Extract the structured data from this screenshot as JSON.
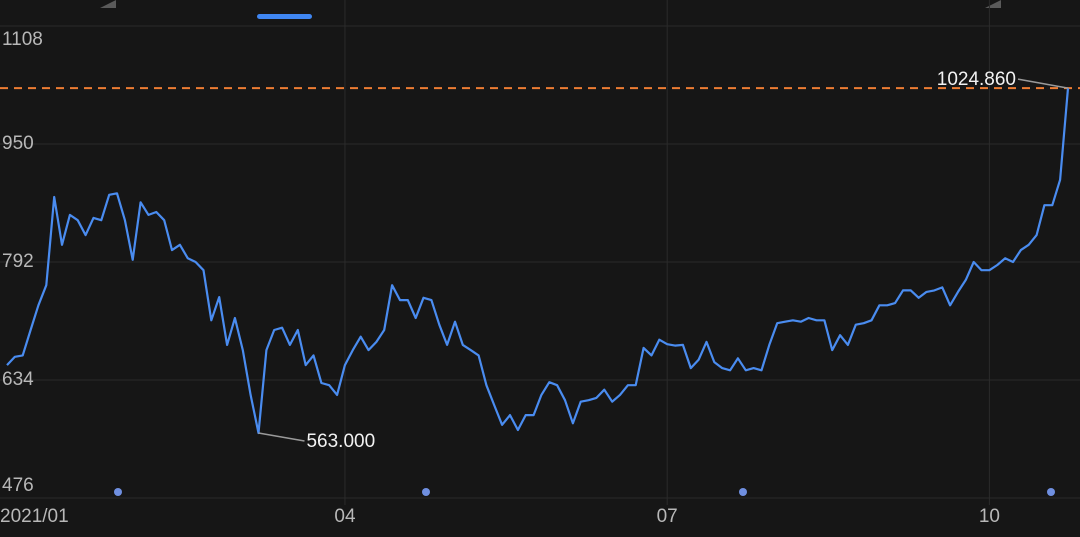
{
  "chart_data": {
    "type": "line",
    "categories": [
      "2021/01",
      null,
      null,
      null,
      null,
      null,
      null,
      null,
      null,
      null,
      null,
      null,
      null,
      null,
      null,
      null,
      null,
      null,
      null,
      null,
      null,
      null,
      null,
      null,
      null,
      null,
      null,
      null,
      null,
      null,
      null,
      null,
      null,
      null,
      null,
      null,
      null,
      null,
      null,
      null,
      null,
      null,
      null,
      "04",
      null,
      null,
      null,
      null,
      null,
      null,
      null,
      null,
      null,
      null,
      null,
      null,
      null,
      null,
      null,
      null,
      null,
      null,
      null,
      null,
      null,
      null,
      null,
      null,
      null,
      null,
      null,
      null,
      null,
      null,
      null,
      null,
      null,
      null,
      null,
      null,
      null,
      null,
      null,
      null,
      "07",
      null,
      null,
      null,
      null,
      null,
      null,
      null,
      null,
      null,
      null,
      null,
      null,
      null,
      null,
      null,
      null,
      null,
      null,
      null,
      null,
      null,
      null,
      null,
      null,
      null,
      null,
      null,
      null,
      null,
      null,
      null,
      null,
      null,
      null,
      null,
      null,
      null,
      null,
      null,
      null,
      "10",
      null,
      null,
      null,
      null,
      null,
      null,
      null,
      null,
      null,
      null
    ],
    "values": [
      654,
      665,
      667,
      701,
      734,
      761,
      879,
      815,
      855,
      848,
      828,
      851,
      848,
      882,
      884,
      848,
      795,
      872,
      855,
      859,
      848,
      808,
      815,
      797,
      792,
      781,
      714,
      745,
      681,
      717,
      674,
      614,
      563,
      674,
      701,
      704,
      681,
      701,
      654,
      667,
      630,
      627,
      614,
      654,
      674,
      692,
      674,
      685,
      701,
      761,
      741,
      741,
      717,
      744,
      741,
      708,
      681,
      712,
      681,
      674,
      667,
      627,
      600,
      574,
      587,
      567,
      587,
      587,
      614,
      631,
      627,
      607,
      576,
      605,
      607,
      610,
      621,
      605,
      614,
      627,
      627,
      677,
      667,
      688,
      682,
      680,
      681,
      650,
      661,
      685,
      658,
      650,
      647,
      663,
      647,
      650,
      647,
      681,
      710,
      712,
      714,
      712,
      717,
      714,
      714,
      674,
      694,
      681,
      708,
      710,
      714,
      734,
      734,
      737,
      754,
      754,
      744,
      752,
      754,
      758,
      734,
      752,
      768,
      792,
      781,
      781,
      788,
      797,
      792,
      808,
      815,
      828,
      868,
      868,
      902,
      1024.86
    ],
    "value_labels": [
      null,
      null,
      null,
      null,
      null,
      null,
      null,
      null,
      null,
      null,
      null,
      null,
      null,
      null,
      null,
      null,
      null,
      null,
      null,
      null,
      null,
      null,
      null,
      null,
      null,
      null,
      null,
      null,
      null,
      null,
      null,
      null,
      "563.000",
      null,
      null,
      null,
      null,
      null,
      null,
      null,
      null,
      null,
      null,
      null,
      null,
      null,
      null,
      null,
      null,
      null,
      null,
      null,
      null,
      null,
      null,
      null,
      null,
      null,
      null,
      null,
      null,
      null,
      null,
      null,
      null,
      null,
      null,
      null,
      null,
      null,
      null,
      null,
      null,
      null,
      null,
      null,
      null,
      null,
      null,
      null,
      null,
      null,
      null,
      null,
      null,
      null,
      null,
      null,
      null,
      null,
      null,
      null,
      null,
      null,
      null,
      null,
      null,
      null,
      null,
      null,
      null,
      null,
      null,
      null,
      null,
      null,
      null,
      null,
      null,
      null,
      null,
      null,
      null,
      null,
      null,
      null,
      null,
      null,
      null,
      null,
      null,
      null,
      null,
      null,
      null,
      null,
      null,
      null,
      null,
      null,
      null,
      null,
      null,
      null,
      null,
      "1024.860"
    ],
    "color": "#4a8cf0",
    "reference_color": "#ee7d33",
    "ylim": [
      476,
      1108
    ],
    "yticks": [
      476,
      634,
      792,
      950,
      1108
    ],
    "grid": true
  }
}
